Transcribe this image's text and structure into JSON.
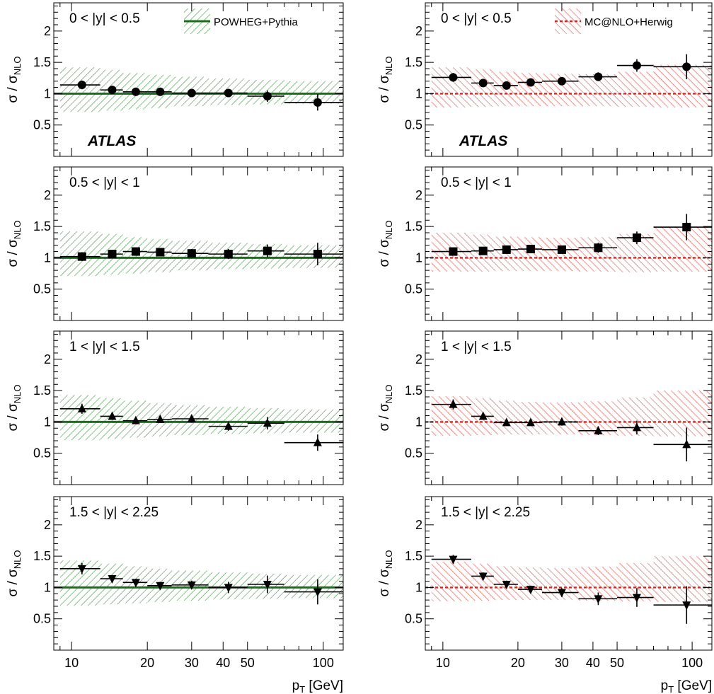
{
  "colors": {
    "powheg": "#1b6e1b",
    "powheg_hatch": "#2e8b2e",
    "mcnlo": "#e8201a",
    "mcnlo_hatch": "#ee3a2f",
    "frame": "#000000"
  },
  "labels": {
    "ylabel_main": "σ / σ",
    "ylabel_sub": "NLO",
    "xlabel_main": "p",
    "xlabel_sub": "T",
    "xlabel_rest": " [GeV]",
    "atlas": "ATLAS",
    "legend_left": "POWHEG+Pythia",
    "legend_right": "MC@NLO+Herwig"
  },
  "chart_data": {
    "type": "scatter",
    "title": "",
    "xlabel": "pT [GeV]",
    "ylabel": "σ / σNLO",
    "xscale": "log",
    "xlim": [
      8.5,
      120
    ],
    "ylim": [
      0,
      2.45
    ],
    "xticks": [
      10,
      20,
      30,
      40,
      50,
      100
    ],
    "xtick_labels": [
      "10",
      "20",
      "30",
      "40",
      "50",
      "100"
    ],
    "yticks": [
      0.5,
      1,
      1.5,
      2
    ],
    "ytick_labels": [
      "0.5",
      "1",
      "1.5",
      "2"
    ],
    "bins": [
      [
        9,
        13
      ],
      [
        13,
        16
      ],
      [
        16,
        20
      ],
      [
        20,
        25
      ],
      [
        25,
        35
      ],
      [
        35,
        50
      ],
      [
        50,
        70
      ],
      [
        70,
        120
      ]
    ],
    "x_centers": [
      11,
      14.5,
      18,
      22.5,
      30,
      42,
      60,
      95
    ],
    "marker_by_rapidity": [
      "circle",
      "square",
      "triangle-up",
      "triangle-down"
    ],
    "panels": [
      {
        "rapidity": "0 < |y| < 0.5",
        "generator": "POWHEG+Pythia",
        "column": 0,
        "row": 0,
        "atlas": true,
        "legend": true,
        "band": [
          [
            0.71,
            1.42
          ],
          [
            0.73,
            1.38
          ],
          [
            0.75,
            1.33
          ],
          [
            0.77,
            1.3
          ],
          [
            0.8,
            1.27
          ],
          [
            0.82,
            1.24
          ],
          [
            0.83,
            1.22
          ],
          [
            0.84,
            1.2
          ]
        ],
        "values": [
          1.14,
          1.06,
          1.03,
          1.03,
          1.01,
          1.01,
          0.96,
          0.86
        ],
        "errors": [
          0.07,
          0.05,
          0.04,
          0.05,
          0.05,
          0.06,
          0.09,
          0.13
        ]
      },
      {
        "rapidity": "0 < |y| < 0.5",
        "generator": "MC@NLO+Herwig",
        "column": 1,
        "row": 0,
        "atlas": true,
        "legend": true,
        "band": [
          [
            0.78,
            1.42
          ],
          [
            0.79,
            1.39
          ],
          [
            0.8,
            1.35
          ],
          [
            0.8,
            1.33
          ],
          [
            0.8,
            1.32
          ],
          [
            0.8,
            1.31
          ],
          [
            0.79,
            1.35
          ],
          [
            0.78,
            1.46
          ]
        ],
        "values": [
          1.26,
          1.17,
          1.13,
          1.18,
          1.2,
          1.27,
          1.45,
          1.43
        ],
        "errors": [
          0.07,
          0.05,
          0.04,
          0.05,
          0.05,
          0.07,
          0.1,
          0.2
        ]
      },
      {
        "rapidity": "0.5 < |y| < 1",
        "generator": "POWHEG+Pythia",
        "column": 0,
        "row": 1,
        "atlas": false,
        "legend": false,
        "band": [
          [
            0.71,
            1.42
          ],
          [
            0.73,
            1.38
          ],
          [
            0.75,
            1.33
          ],
          [
            0.77,
            1.3
          ],
          [
            0.8,
            1.27
          ],
          [
            0.82,
            1.24
          ],
          [
            0.83,
            1.22
          ],
          [
            0.84,
            1.2
          ]
        ],
        "values": [
          1.02,
          1.06,
          1.1,
          1.09,
          1.07,
          1.06,
          1.11,
          1.06
        ],
        "errors": [
          0.07,
          0.05,
          0.06,
          0.06,
          0.07,
          0.08,
          0.1,
          0.18
        ]
      },
      {
        "rapidity": "0.5 < |y| < 1",
        "generator": "MC@NLO+Herwig",
        "column": 1,
        "row": 1,
        "atlas": false,
        "legend": false,
        "band": [
          [
            0.78,
            1.4
          ],
          [
            0.78,
            1.37
          ],
          [
            0.79,
            1.34
          ],
          [
            0.79,
            1.33
          ],
          [
            0.79,
            1.32
          ],
          [
            0.78,
            1.33
          ],
          [
            0.77,
            1.38
          ],
          [
            0.78,
            1.5
          ]
        ],
        "values": [
          1.1,
          1.11,
          1.13,
          1.14,
          1.13,
          1.16,
          1.32,
          1.49
        ],
        "errors": [
          0.06,
          0.05,
          0.05,
          0.06,
          0.06,
          0.08,
          0.1,
          0.21
        ]
      },
      {
        "rapidity": "1 < |y| < 1.5",
        "generator": "POWHEG+Pythia",
        "column": 0,
        "row": 2,
        "atlas": false,
        "legend": false,
        "band": [
          [
            0.71,
            1.43
          ],
          [
            0.73,
            1.38
          ],
          [
            0.75,
            1.34
          ],
          [
            0.77,
            1.3
          ],
          [
            0.79,
            1.27
          ],
          [
            0.81,
            1.24
          ],
          [
            0.82,
            1.22
          ],
          [
            0.83,
            1.2
          ]
        ],
        "values": [
          1.21,
          1.09,
          1.02,
          1.04,
          1.05,
          0.93,
          0.98,
          0.67
        ],
        "errors": [
          0.08,
          0.05,
          0.05,
          0.05,
          0.06,
          0.07,
          0.1,
          0.13
        ]
      },
      {
        "rapidity": "1 < |y| < 1.5",
        "generator": "MC@NLO+Herwig",
        "column": 1,
        "row": 2,
        "atlas": false,
        "legend": false,
        "band": [
          [
            0.78,
            1.41
          ],
          [
            0.79,
            1.38
          ],
          [
            0.8,
            1.34
          ],
          [
            0.8,
            1.32
          ],
          [
            0.8,
            1.31
          ],
          [
            0.79,
            1.33
          ],
          [
            0.78,
            1.39
          ],
          [
            0.77,
            1.5
          ]
        ],
        "values": [
          1.28,
          1.09,
          0.99,
          0.99,
          1.0,
          0.86,
          0.91,
          0.64
        ],
        "errors": [
          0.08,
          0.05,
          0.05,
          0.05,
          0.06,
          0.07,
          0.11,
          0.27
        ]
      },
      {
        "rapidity": "1.5 < |y| < 2.25",
        "generator": "POWHEG+Pythia",
        "column": 0,
        "row": 3,
        "atlas": false,
        "legend": false,
        "band": [
          [
            0.71,
            1.43
          ],
          [
            0.73,
            1.38
          ],
          [
            0.75,
            1.34
          ],
          [
            0.77,
            1.3
          ],
          [
            0.79,
            1.27
          ],
          [
            0.81,
            1.24
          ],
          [
            0.82,
            1.22
          ],
          [
            0.83,
            1.2
          ]
        ],
        "values": [
          1.3,
          1.14,
          1.08,
          1.03,
          1.04,
          1.0,
          1.05,
          0.93
        ],
        "errors": [
          0.09,
          0.06,
          0.06,
          0.06,
          0.07,
          0.09,
          0.14,
          0.2
        ]
      },
      {
        "rapidity": "1.5 < |y| < 2.25",
        "generator": "MC@NLO+Herwig",
        "column": 1,
        "row": 3,
        "atlas": false,
        "legend": false,
        "band": [
          [
            0.78,
            1.41
          ],
          [
            0.79,
            1.38
          ],
          [
            0.8,
            1.34
          ],
          [
            0.8,
            1.32
          ],
          [
            0.8,
            1.31
          ],
          [
            0.79,
            1.33
          ],
          [
            0.78,
            1.39
          ],
          [
            0.77,
            1.5
          ]
        ],
        "values": [
          1.45,
          1.18,
          1.05,
          0.97,
          0.92,
          0.82,
          0.84,
          0.72
        ],
        "errors": [
          0.07,
          0.06,
          0.06,
          0.06,
          0.07,
          0.1,
          0.15,
          0.3
        ]
      }
    ]
  }
}
